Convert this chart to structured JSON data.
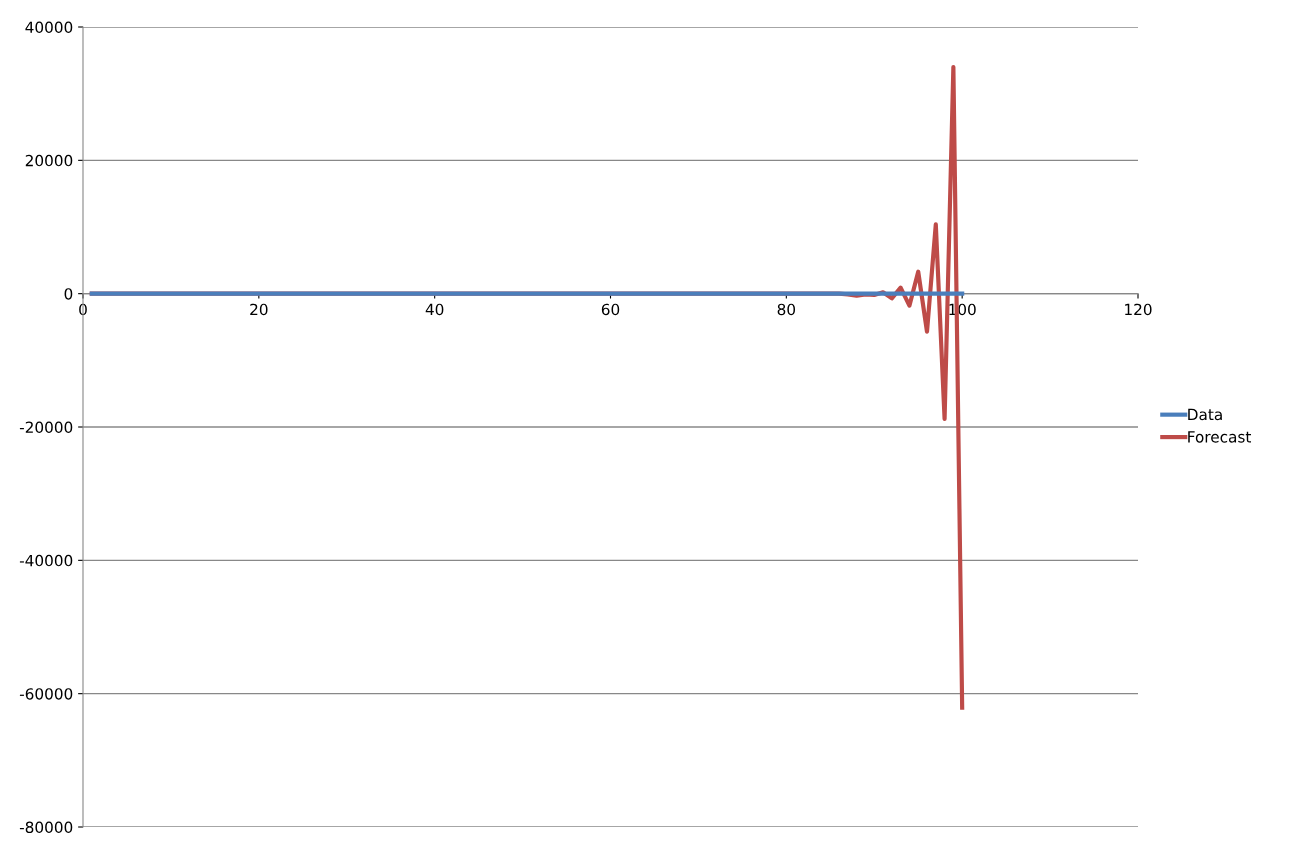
{
  "chart_data": {
    "type": "line",
    "xlim": [
      0,
      120
    ],
    "xticks": [
      0,
      20,
      40,
      60,
      80,
      100,
      120
    ],
    "ylim": [
      -80000,
      40000
    ],
    "yticks": [
      -80000,
      -60000,
      -40000,
      -20000,
      0,
      20000,
      40000
    ],
    "grid": "y",
    "legend": "right",
    "marker": "none",
    "line_style": "solid",
    "series": [
      {
        "name": "Data",
        "color": "#4a7ebb",
        "x": [
          1,
          100
        ],
        "values": [
          0,
          0
        ]
      },
      {
        "name": "Forecast",
        "color": "#be4b48",
        "x": [
          1,
          86,
          87,
          88,
          89,
          90,
          91,
          92,
          93,
          94,
          95,
          96,
          97,
          98,
          99,
          100
        ],
        "values": [
          0,
          0,
          -100,
          -300,
          -100,
          -200,
          200,
          -700,
          900,
          -1800,
          3300,
          -5700,
          10400,
          -18800,
          34000,
          -62100
        ]
      }
    ]
  }
}
